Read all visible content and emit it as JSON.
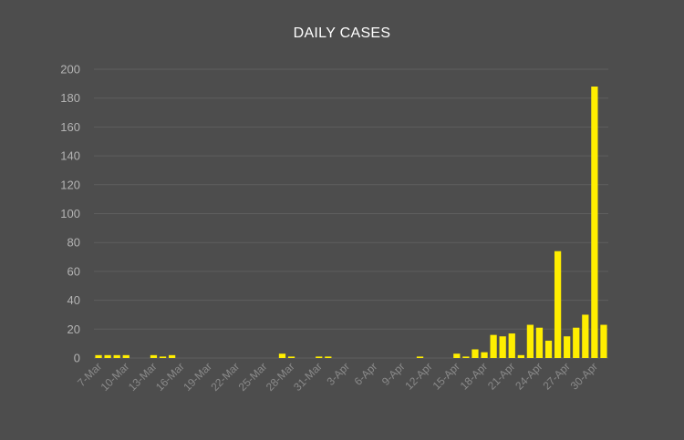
{
  "chart_data": {
    "type": "bar",
    "title": "DAILY CASES",
    "xlabel": "",
    "ylabel": "",
    "ylim": [
      0,
      200
    ],
    "yticks": [
      0,
      20,
      40,
      60,
      80,
      100,
      120,
      140,
      160,
      180,
      200
    ],
    "grid": true,
    "bar_color": "#ffee00",
    "tick_labels": [
      "7-Mar",
      "10-Mar",
      "13-Mar",
      "16-Mar",
      "19-Mar",
      "22-Mar",
      "25-Mar",
      "28-Mar",
      "31-Mar",
      "3-Apr",
      "6-Apr",
      "9-Apr",
      "12-Apr",
      "15-Apr",
      "18-Apr",
      "21-Apr",
      "24-Apr",
      "27-Apr",
      "30-Apr"
    ],
    "categories": [
      "7-Mar",
      "8-Mar",
      "9-Mar",
      "10-Mar",
      "11-Mar",
      "12-Mar",
      "13-Mar",
      "14-Mar",
      "15-Mar",
      "16-Mar",
      "17-Mar",
      "18-Mar",
      "19-Mar",
      "20-Mar",
      "21-Mar",
      "22-Mar",
      "23-Mar",
      "24-Mar",
      "25-Mar",
      "26-Mar",
      "27-Mar",
      "28-Mar",
      "29-Mar",
      "30-Mar",
      "31-Mar",
      "1-Apr",
      "2-Apr",
      "3-Apr",
      "4-Apr",
      "5-Apr",
      "6-Apr",
      "7-Apr",
      "8-Apr",
      "9-Apr",
      "10-Apr",
      "11-Apr",
      "12-Apr",
      "13-Apr",
      "14-Apr",
      "15-Apr",
      "16-Apr",
      "17-Apr",
      "18-Apr",
      "19-Apr",
      "20-Apr",
      "21-Apr",
      "22-Apr",
      "23-Apr",
      "24-Apr",
      "25-Apr",
      "26-Apr",
      "27-Apr",
      "28-Apr",
      "29-Apr",
      "30-Apr",
      "1-May"
    ],
    "values": [
      2,
      2,
      2,
      2,
      0,
      0,
      2,
      1,
      2,
      0,
      0,
      0,
      0,
      0,
      0,
      0,
      0,
      0,
      0,
      0,
      3,
      1,
      0,
      0,
      1,
      1,
      0,
      0,
      0,
      0,
      0,
      0,
      0,
      0,
      0,
      1,
      0,
      0,
      0,
      3,
      1,
      6,
      4,
      16,
      15,
      17,
      2,
      23,
      21,
      12,
      74,
      15,
      21,
      30,
      188,
      23
    ]
  }
}
